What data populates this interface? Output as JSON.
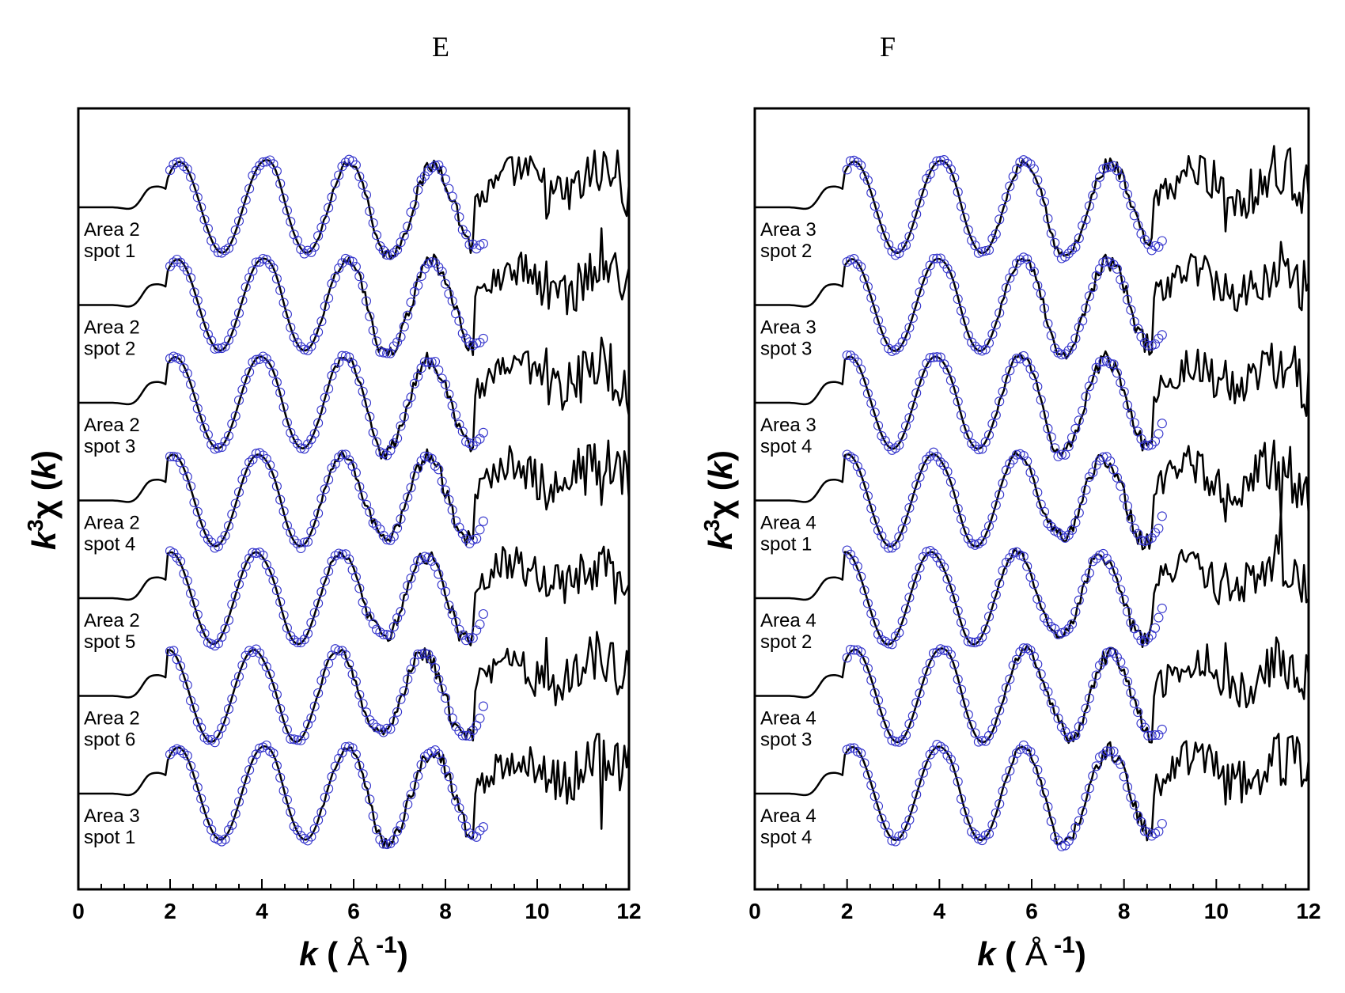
{
  "chart_data": [
    {
      "type": "line",
      "panel": "E",
      "title": "E",
      "xlabel": "k ( Å -1)",
      "xlabel_parts": {
        "var": "k",
        "open": " ( ",
        "unit": "Å",
        "sup": " -1",
        "close": ")"
      },
      "ylabel": "k3χ (k)",
      "ylabel_parts": {
        "var": "k",
        "sup": "3",
        "chi": "χ",
        "open": " (",
        "arg": "k",
        "close": ")"
      },
      "xlim": [
        0,
        12
      ],
      "xticks": [
        0,
        2,
        4,
        6,
        8,
        10,
        12
      ],
      "ylabel_visible": true,
      "series_style": {
        "measured": "#000000 solid line",
        "fit": "#3333cc open circles"
      },
      "traces": [
        {
          "label_line1": "Area 2",
          "label_line2": "spot 1"
        },
        {
          "label_line1": "Area 2",
          "label_line2": "spot 2"
        },
        {
          "label_line1": "Area 2",
          "label_line2": "spot 3"
        },
        {
          "label_line1": "Area 2",
          "label_line2": "spot 4"
        },
        {
          "label_line1": "Area 2",
          "label_line2": "spot 5"
        },
        {
          "label_line1": "Area 2",
          "label_line2": "spot 6"
        },
        {
          "label_line1": "Area 3",
          "label_line2": "spot 1"
        }
      ]
    },
    {
      "type": "line",
      "panel": "F",
      "title": "F",
      "xlabel": "k ( Å -1)",
      "xlabel_parts": {
        "var": "k",
        "open": " ( ",
        "unit": "Å",
        "sup": " -1",
        "close": ")"
      },
      "ylabel": "k3χ (k)",
      "ylabel_parts": {
        "var": "k",
        "sup": "3",
        "chi": "χ",
        "open": " (",
        "arg": "k",
        "close": ")"
      },
      "xlim": [
        0,
        12
      ],
      "xticks": [
        0,
        2,
        4,
        6,
        8,
        10,
        12
      ],
      "series_style": {
        "measured": "#000000 solid line",
        "fit": "#3333cc open circles"
      },
      "traces": [
        {
          "label_line1": "Area 3",
          "label_line2": "spot 2"
        },
        {
          "label_line1": "Area 3",
          "label_line2": "spot 3"
        },
        {
          "label_line1": "Area 3",
          "label_line2": "spot 4"
        },
        {
          "label_line1": "Area 4",
          "label_line2": "spot 1"
        },
        {
          "label_line1": "Area 4",
          "label_line2": "spot 2"
        },
        {
          "label_line1": "Area 4",
          "label_line2": "spot 3"
        },
        {
          "label_line1": "Area 4",
          "label_line2": "spot 4"
        }
      ]
    }
  ],
  "colors": {
    "line": "#000000",
    "fit_circle": "#3333cc",
    "frame": "#000000",
    "background": "#ffffff"
  }
}
